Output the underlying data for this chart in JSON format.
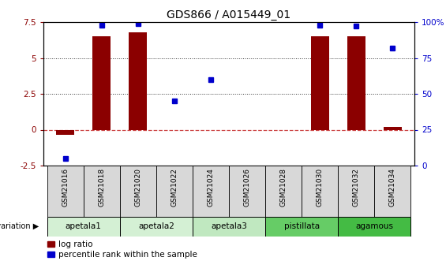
{
  "title": "GDS866 / A015449_01",
  "samples": [
    "GSM21016",
    "GSM21018",
    "GSM21020",
    "GSM21022",
    "GSM21024",
    "GSM21026",
    "GSM21028",
    "GSM21030",
    "GSM21032",
    "GSM21034"
  ],
  "log_ratio": [
    -0.35,
    6.5,
    6.8,
    -0.05,
    -0.05,
    -0.05,
    -0.05,
    6.5,
    6.5,
    0.2
  ],
  "percentile_rank": [
    5,
    98,
    99,
    45,
    60,
    null,
    null,
    98,
    97,
    82
  ],
  "ylim_left": [
    -2.5,
    7.5
  ],
  "ylim_right": [
    0,
    100
  ],
  "yticks_left": [
    -2.5,
    0,
    2.5,
    5,
    7.5
  ],
  "yticks_right": [
    0,
    25,
    50,
    75,
    100
  ],
  "groups": [
    {
      "label": "apetala1",
      "start": 0,
      "end": 1,
      "color": "#d4f0d4"
    },
    {
      "label": "apetala2",
      "start": 2,
      "end": 3,
      "color": "#d4f0d4"
    },
    {
      "label": "apetala3",
      "start": 4,
      "end": 5,
      "color": "#c0e8c0"
    },
    {
      "label": "pistillata",
      "start": 6,
      "end": 7,
      "color": "#66cc66"
    },
    {
      "label": "agamous",
      "start": 8,
      "end": 9,
      "color": "#44bb44"
    }
  ],
  "bar_color": "#8B0000",
  "dot_color": "#0000CC",
  "zero_line_color": "#cc4444",
  "hline_color": "#333333",
  "bg_color": "#ffffff",
  "plot_bg": "#ffffff",
  "legend_bar_label": "log ratio",
  "legend_dot_label": "percentile rank within the sample",
  "sample_box_color": "#d8d8d8"
}
